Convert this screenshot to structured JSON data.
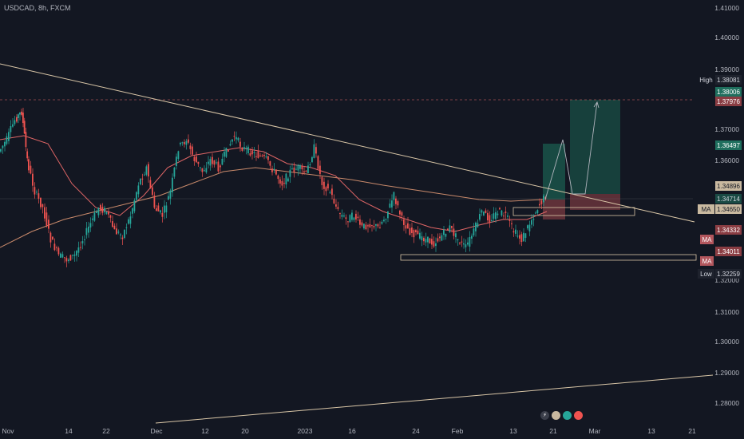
{
  "header": {
    "symbol_text": "USDCAD, 8h, FXCM"
  },
  "price_axis": {
    "ticks": [
      "1.41000",
      "1.40000",
      "1.39000",
      "1.37000",
      "1.36000",
      "1.32000",
      "1.31000",
      "1.30000",
      "1.29000",
      "1.28000"
    ]
  },
  "time_axis": {
    "labels": [
      "Nov",
      "14",
      "22",
      "Dec",
      "12",
      "20",
      "2023",
      "16",
      "24",
      "Feb",
      "13",
      "21",
      "Mar",
      "13",
      "21"
    ]
  },
  "badges": [
    {
      "label": "High",
      "value": "1.38081",
      "label_bg": "#131722",
      "value_bg": "#1e222d",
      "text": "#d1d4dc"
    },
    {
      "label": "",
      "value": "1.38006",
      "label_bg": "",
      "value_bg": "#1f6f5e",
      "text": "#ffffff"
    },
    {
      "label": "",
      "value": "1.37976",
      "label_bg": "",
      "value_bg": "#8a3d43",
      "text": "#ffffff"
    },
    {
      "label": "",
      "value": "1.36497",
      "label_bg": "",
      "value_bg": "#1f6f5e",
      "text": "#ffffff"
    },
    {
      "label": "",
      "value": "1.34896",
      "label_bg": "",
      "value_bg": "#c9b9a0",
      "text": "#131722"
    },
    {
      "label": "",
      "value": "1.34714",
      "label_bg": "",
      "value_bg": "#1a4a44",
      "text": "#d1d4dc"
    },
    {
      "label": "MA",
      "value": "1.34650",
      "label_bg": "#c9b9a0",
      "value_bg": "#c9b9a0",
      "text": "#131722"
    },
    {
      "label": "",
      "value": "1.34332",
      "label_bg": "",
      "value_bg": "#8a3d43",
      "text": "#ffffff"
    },
    {
      "label": "MA",
      "value": "",
      "label_bg": "#b2565d",
      "value_bg": "",
      "text": "#ffffff"
    },
    {
      "label": "",
      "value": "1.34011",
      "label_bg": "",
      "value_bg": "#8a3d43",
      "text": "#ffffff"
    },
    {
      "label": "MA",
      "value": "",
      "label_bg": "#b2565d",
      "value_bg": "",
      "text": "#ffffff"
    },
    {
      "label": "Low",
      "value": "1.32259",
      "label_bg": "#1e222d",
      "value_bg": "#1e222d",
      "text": "#d1d4dc"
    }
  ],
  "colors": {
    "background": "#131722",
    "up": "#26a69a",
    "down": "#ef5350",
    "ma_fast": "#e06666",
    "ma_slow": "#c98a6b",
    "trendline": "#d9c6a7",
    "target_zone": "#1b5c4f",
    "stop_zone": "#7a3a40"
  },
  "icons": [
    "lightning-icon",
    "indicator-icon-1",
    "indicator-icon-2",
    "indicator-icon-3"
  ]
}
